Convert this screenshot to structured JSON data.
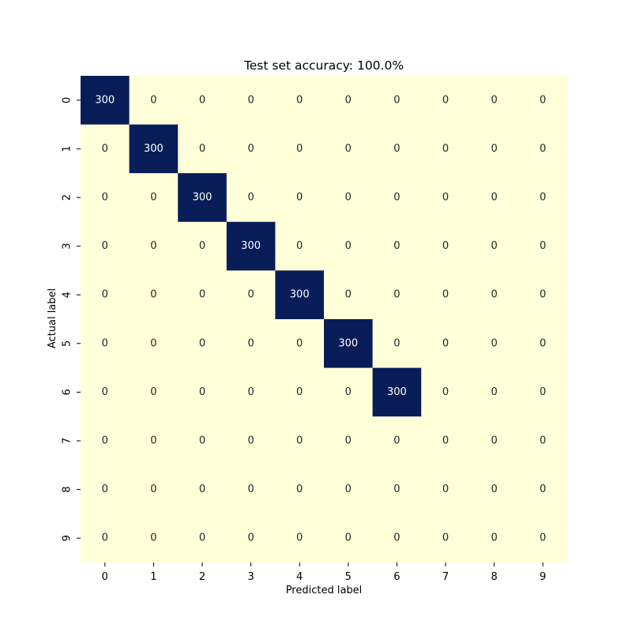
{
  "chart_data": {
    "type": "heatmap",
    "title": "Test set accuracy: 100.0%",
    "xlabel": "Predicted label",
    "ylabel": "Actual label",
    "x_categories": [
      "0",
      "1",
      "2",
      "3",
      "4",
      "5",
      "6",
      "7",
      "8",
      "9"
    ],
    "y_categories": [
      "0",
      "1",
      "2",
      "3",
      "4",
      "5",
      "6",
      "7",
      "8",
      "9"
    ],
    "values": [
      [
        300,
        0,
        0,
        0,
        0,
        0,
        0,
        0,
        0,
        0
      ],
      [
        0,
        300,
        0,
        0,
        0,
        0,
        0,
        0,
        0,
        0
      ],
      [
        0,
        0,
        300,
        0,
        0,
        0,
        0,
        0,
        0,
        0
      ],
      [
        0,
        0,
        0,
        300,
        0,
        0,
        0,
        0,
        0,
        0
      ],
      [
        0,
        0,
        0,
        0,
        300,
        0,
        0,
        0,
        0,
        0
      ],
      [
        0,
        0,
        0,
        0,
        0,
        300,
        0,
        0,
        0,
        0
      ],
      [
        0,
        0,
        0,
        0,
        0,
        0,
        300,
        0,
        0,
        0
      ],
      [
        0,
        0,
        0,
        0,
        0,
        0,
        0,
        0,
        0,
        0
      ],
      [
        0,
        0,
        0,
        0,
        0,
        0,
        0,
        0,
        0,
        0
      ],
      [
        0,
        0,
        0,
        0,
        0,
        0,
        0,
        0,
        0,
        0
      ]
    ],
    "value_range": [
      0,
      300
    ],
    "colormap": "YlGnBu",
    "colors": {
      "low": "#ffffd9",
      "high": "#081d58",
      "text_on_low": "#262626",
      "text_on_high": "#ffffff"
    },
    "colorbar": false,
    "grid": false
  }
}
